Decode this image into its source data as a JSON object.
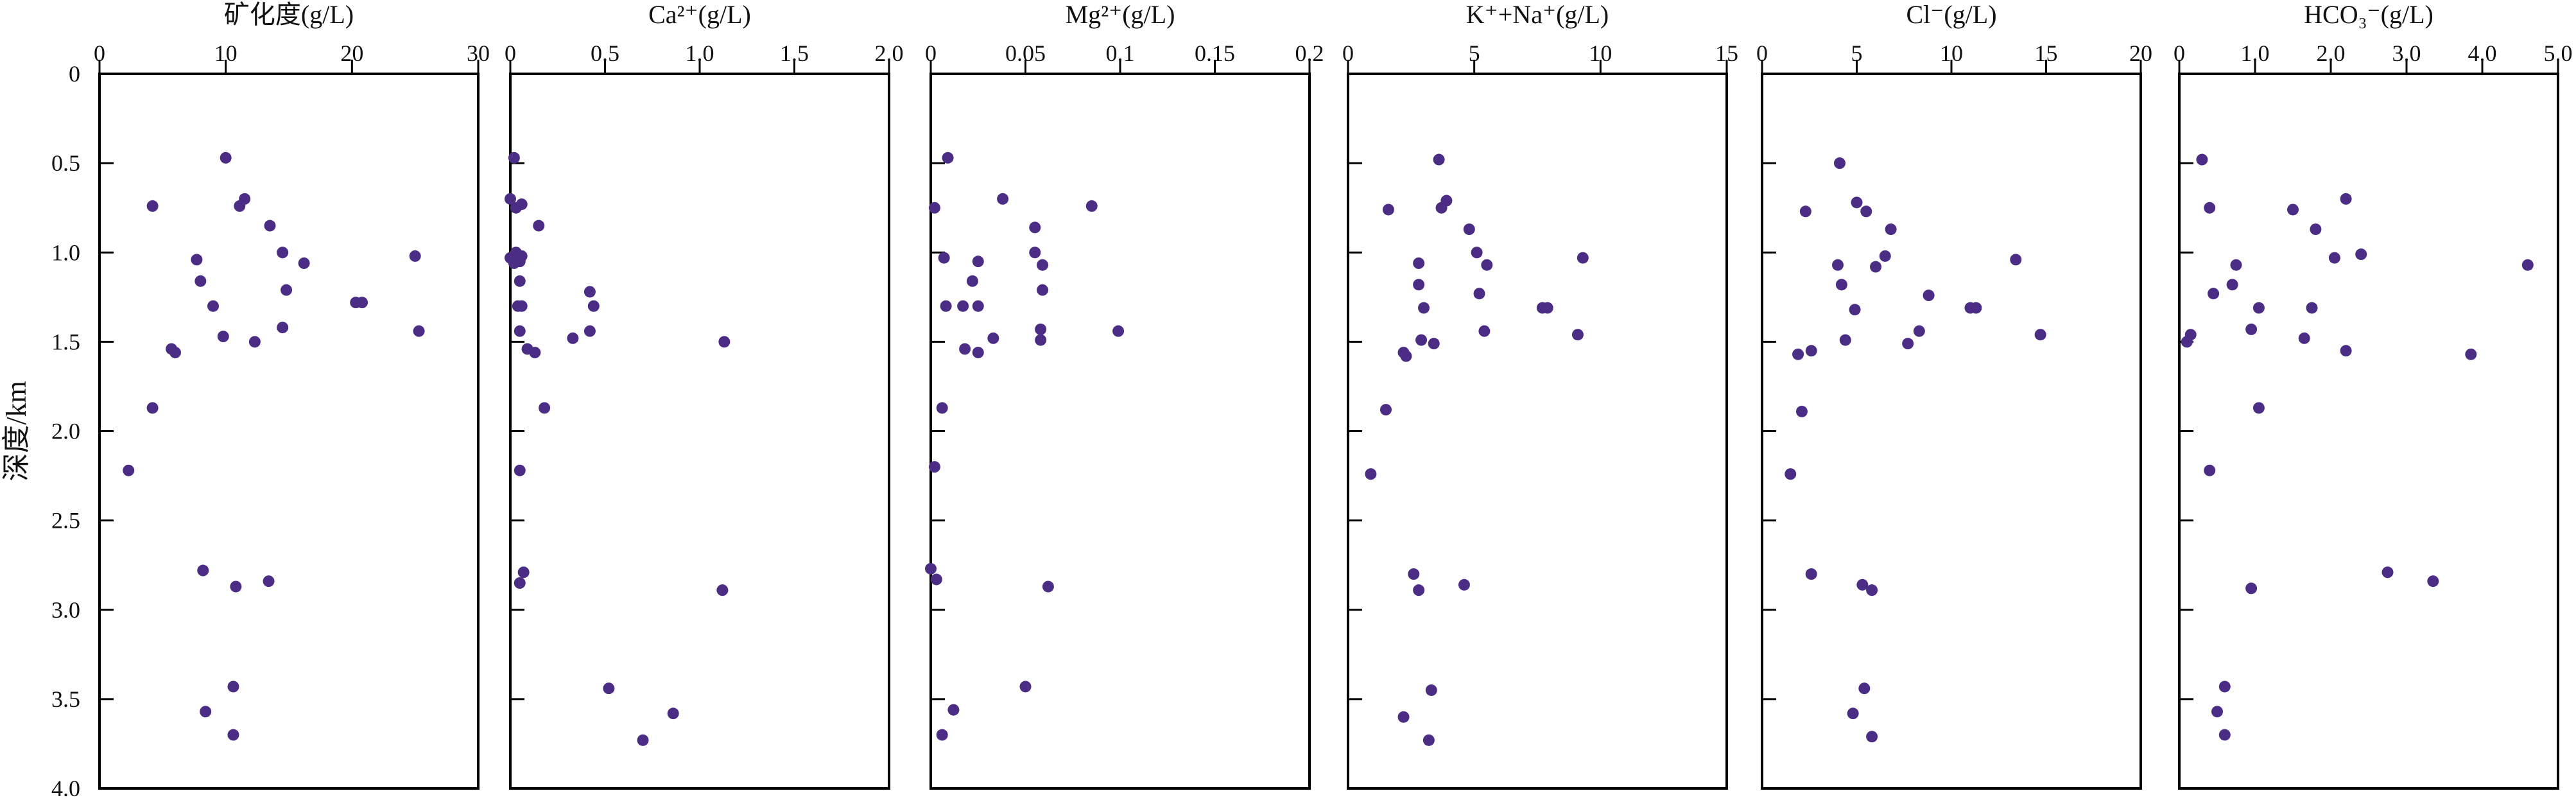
{
  "chart_data": {
    "type": "scatter",
    "ylabel": "深度/km",
    "y_ticks": [
      0,
      0.5,
      1.0,
      1.5,
      2.0,
      2.5,
      3.0,
      3.5,
      4.0
    ],
    "y_tick_labels": [
      "0",
      "0.5",
      "1.0",
      "1.5",
      "2.0",
      "2.5",
      "3.0",
      "3.5",
      "4.0"
    ],
    "ylim": [
      0,
      4.0
    ],
    "y_inverted": true,
    "marker_color": "#4b2d86",
    "panels": [
      {
        "title": "矿化度(g/L)",
        "xlim": [
          0,
          30
        ],
        "x_ticks": [
          0,
          10,
          20,
          30
        ],
        "x_tick_labels": [
          "0",
          "10",
          "20",
          "30"
        ],
        "points": [
          [
            10,
            0.47
          ],
          [
            4.2,
            0.74
          ],
          [
            11.5,
            0.7
          ],
          [
            11.1,
            0.74
          ],
          [
            13.5,
            0.85
          ],
          [
            14.5,
            1.0
          ],
          [
            7.7,
            1.04
          ],
          [
            16.2,
            1.06
          ],
          [
            25.0,
            1.02
          ],
          [
            8.0,
            1.16
          ],
          [
            14.8,
            1.21
          ],
          [
            9.0,
            1.3
          ],
          [
            20.3,
            1.28
          ],
          [
            20.8,
            1.28
          ],
          [
            14.5,
            1.42
          ],
          [
            9.8,
            1.47
          ],
          [
            25.3,
            1.44
          ],
          [
            12.3,
            1.5
          ],
          [
            5.7,
            1.54
          ],
          [
            6.0,
            1.56
          ],
          [
            4.2,
            1.87
          ],
          [
            2.3,
            2.22
          ],
          [
            8.2,
            2.78
          ],
          [
            13.4,
            2.84
          ],
          [
            10.8,
            2.87
          ],
          [
            10.6,
            3.43
          ],
          [
            8.4,
            3.57
          ],
          [
            10.6,
            3.7
          ]
        ]
      },
      {
        "title": "Ca²⁺(g/L)",
        "xlim": [
          0,
          2.0
        ],
        "x_ticks": [
          0,
          0.5,
          1.0,
          1.5,
          2.0
        ],
        "x_tick_labels": [
          "0",
          "0.5",
          "1.0",
          "1.5",
          "2.0"
        ],
        "points": [
          [
            0.02,
            0.47
          ],
          [
            0.0,
            0.7
          ],
          [
            0.03,
            0.75
          ],
          [
            0.06,
            0.73
          ],
          [
            0.15,
            0.85
          ],
          [
            0.03,
            1.0
          ],
          [
            0.06,
            1.02
          ],
          [
            0.0,
            1.03
          ],
          [
            0.02,
            1.06
          ],
          [
            0.05,
            1.05
          ],
          [
            0.05,
            1.16
          ],
          [
            0.42,
            1.22
          ],
          [
            0.04,
            1.3
          ],
          [
            0.06,
            1.3
          ],
          [
            0.44,
            1.3
          ],
          [
            0.05,
            1.44
          ],
          [
            0.42,
            1.44
          ],
          [
            0.33,
            1.48
          ],
          [
            1.13,
            1.5
          ],
          [
            0.09,
            1.54
          ],
          [
            0.13,
            1.56
          ],
          [
            0.18,
            1.87
          ],
          [
            0.05,
            2.22
          ],
          [
            0.07,
            2.79
          ],
          [
            0.05,
            2.85
          ],
          [
            1.12,
            2.89
          ],
          [
            0.52,
            3.44
          ],
          [
            0.86,
            3.58
          ],
          [
            0.7,
            3.73
          ]
        ]
      },
      {
        "title": "Mg²⁺(g/L)",
        "xlim": [
          0,
          0.2
        ],
        "x_ticks": [
          0,
          0.05,
          0.1,
          0.15,
          0.2
        ],
        "x_tick_labels": [
          "0",
          "0.05",
          "0.1",
          "0.15",
          "0.2"
        ],
        "points": [
          [
            0.009,
            0.47
          ],
          [
            0.038,
            0.7
          ],
          [
            0.085,
            0.74
          ],
          [
            0.002,
            0.75
          ],
          [
            0.055,
            0.86
          ],
          [
            0.055,
            1.0
          ],
          [
            0.007,
            1.03
          ],
          [
            0.025,
            1.05
          ],
          [
            0.059,
            1.07
          ],
          [
            0.022,
            1.16
          ],
          [
            0.059,
            1.21
          ],
          [
            0.008,
            1.3
          ],
          [
            0.017,
            1.3
          ],
          [
            0.025,
            1.3
          ],
          [
            0.058,
            1.43
          ],
          [
            0.099,
            1.44
          ],
          [
            0.033,
            1.48
          ],
          [
            0.058,
            1.49
          ],
          [
            0.018,
            1.54
          ],
          [
            0.025,
            1.56
          ],
          [
            0.006,
            1.87
          ],
          [
            0.002,
            2.2
          ],
          [
            0.0,
            2.77
          ],
          [
            0.003,
            2.83
          ],
          [
            0.062,
            2.87
          ],
          [
            0.05,
            3.43
          ],
          [
            0.012,
            3.56
          ],
          [
            0.006,
            3.7
          ]
        ]
      },
      {
        "title": "K⁺+Na⁺(g/L)",
        "xlim": [
          0,
          15
        ],
        "x_ticks": [
          0,
          5,
          10,
          15
        ],
        "x_tick_labels": [
          "0",
          "5",
          "10",
          "15"
        ],
        "points": [
          [
            3.6,
            0.48
          ],
          [
            3.9,
            0.71
          ],
          [
            1.6,
            0.76
          ],
          [
            3.7,
            0.75
          ],
          [
            4.8,
            0.87
          ],
          [
            5.1,
            1.0
          ],
          [
            9.3,
            1.03
          ],
          [
            2.8,
            1.06
          ],
          [
            5.5,
            1.07
          ],
          [
            2.8,
            1.18
          ],
          [
            5.2,
            1.23
          ],
          [
            3.0,
            1.31
          ],
          [
            7.7,
            1.31
          ],
          [
            7.9,
            1.31
          ],
          [
            5.4,
            1.44
          ],
          [
            9.1,
            1.46
          ],
          [
            2.9,
            1.49
          ],
          [
            3.4,
            1.51
          ],
          [
            2.2,
            1.56
          ],
          [
            2.3,
            1.58
          ],
          [
            1.5,
            1.88
          ],
          [
            0.9,
            2.24
          ],
          [
            2.6,
            2.8
          ],
          [
            4.6,
            2.86
          ],
          [
            2.8,
            2.89
          ],
          [
            3.3,
            3.45
          ],
          [
            2.2,
            3.6
          ],
          [
            3.2,
            3.73
          ]
        ]
      },
      {
        "title": "Cl⁻(g/L)",
        "xlim": [
          0,
          20
        ],
        "x_ticks": [
          0,
          5,
          10,
          15,
          20
        ],
        "x_tick_labels": [
          "0",
          "5",
          "10",
          "15",
          "20"
        ],
        "points": [
          [
            4.1,
            0.5
          ],
          [
            5.0,
            0.72
          ],
          [
            2.3,
            0.77
          ],
          [
            5.5,
            0.77
          ],
          [
            6.8,
            0.87
          ],
          [
            6.5,
            1.02
          ],
          [
            13.4,
            1.04
          ],
          [
            4.0,
            1.07
          ],
          [
            6.0,
            1.08
          ],
          [
            4.2,
            1.18
          ],
          [
            8.8,
            1.24
          ],
          [
            11.0,
            1.31
          ],
          [
            11.3,
            1.31
          ],
          [
            4.9,
            1.32
          ],
          [
            8.3,
            1.44
          ],
          [
            14.7,
            1.46
          ],
          [
            4.4,
            1.49
          ],
          [
            7.7,
            1.51
          ],
          [
            2.6,
            1.55
          ],
          [
            1.9,
            1.57
          ],
          [
            2.1,
            1.89
          ],
          [
            1.5,
            2.24
          ],
          [
            2.6,
            2.8
          ],
          [
            5.3,
            2.86
          ],
          [
            5.8,
            2.89
          ],
          [
            5.4,
            3.44
          ],
          [
            4.8,
            3.58
          ],
          [
            5.8,
            3.71
          ]
        ]
      },
      {
        "title": "HCO₃⁻(g/L)",
        "xlim": [
          0,
          5.0
        ],
        "x_ticks": [
          0,
          1.0,
          2.0,
          3.0,
          4.0,
          5.0
        ],
        "x_tick_labels": [
          "0",
          "1.0",
          "2.0",
          "3.0",
          "4.0",
          "5.0"
        ],
        "points": [
          [
            0.3,
            0.48
          ],
          [
            2.2,
            0.7
          ],
          [
            0.4,
            0.75
          ],
          [
            1.5,
            0.76
          ],
          [
            1.8,
            0.87
          ],
          [
            2.4,
            1.01
          ],
          [
            2.05,
            1.03
          ],
          [
            4.6,
            1.07
          ],
          [
            0.75,
            1.07
          ],
          [
            0.7,
            1.18
          ],
          [
            0.45,
            1.23
          ],
          [
            1.05,
            1.31
          ],
          [
            1.75,
            1.31
          ],
          [
            0.95,
            1.43
          ],
          [
            0.15,
            1.46
          ],
          [
            1.65,
            1.48
          ],
          [
            0.1,
            1.5
          ],
          [
            2.2,
            1.55
          ],
          [
            3.85,
            1.57
          ],
          [
            1.05,
            1.87
          ],
          [
            0.4,
            2.22
          ],
          [
            2.75,
            2.79
          ],
          [
            3.35,
            2.84
          ],
          [
            0.95,
            2.88
          ],
          [
            0.6,
            3.43
          ],
          [
            0.5,
            3.57
          ],
          [
            0.6,
            3.7
          ]
        ]
      }
    ]
  }
}
